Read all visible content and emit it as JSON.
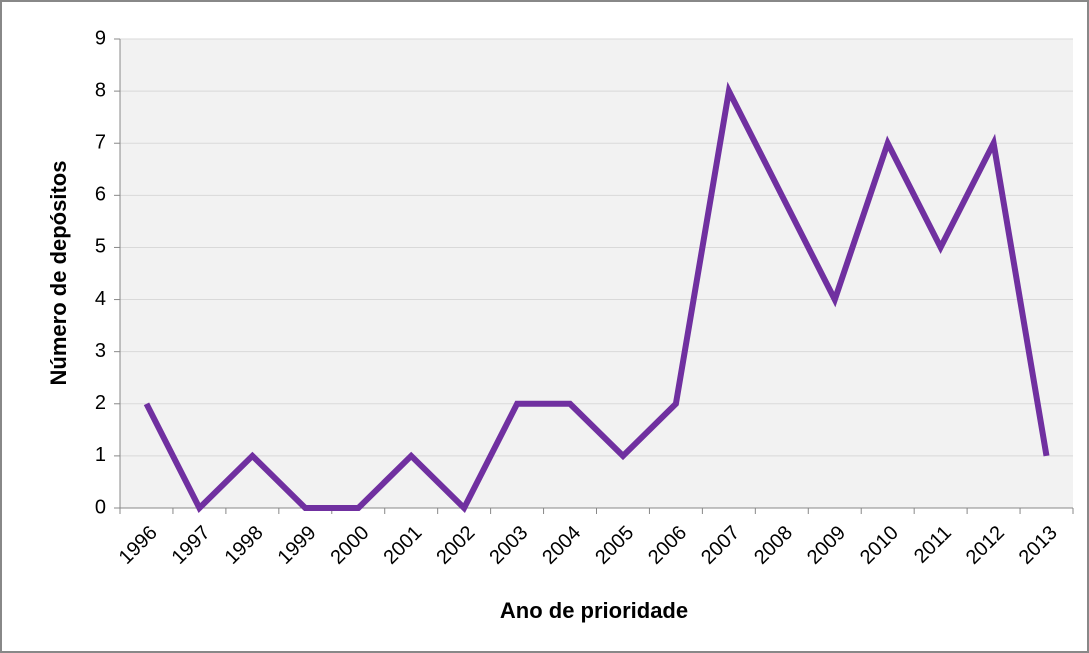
{
  "chart_data": {
    "type": "line",
    "xlabel": "Ano de prioridade",
    "ylabel": "Número de depósitos",
    "categories": [
      "1996",
      "1997",
      "1998",
      "1999",
      "2000",
      "2001",
      "2002",
      "2003",
      "2004",
      "2005",
      "2006",
      "2007",
      "2008",
      "2009",
      "2010",
      "2011",
      "2012",
      "2013"
    ],
    "values": [
      2,
      0,
      1,
      0,
      0,
      1,
      0,
      2,
      2,
      1,
      2,
      8,
      6,
      4,
      7,
      5,
      7,
      1
    ],
    "color": "#7030a0",
    "ylim": [
      0,
      9
    ],
    "yticks": [
      0,
      1,
      2,
      3,
      4,
      5,
      6,
      7,
      8,
      9
    ],
    "grid": true
  }
}
